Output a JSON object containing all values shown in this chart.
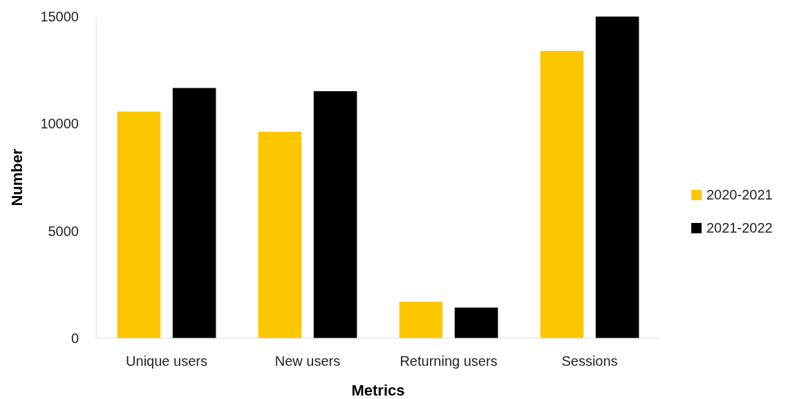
{
  "chart_data": {
    "type": "bar",
    "xlabel": "Metrics",
    "ylabel": "Number",
    "categories": [
      "Unique users",
      "New users",
      "Returning users",
      "Sessions"
    ],
    "series": [
      {
        "name": "2020-2021",
        "color": "#fdc700",
        "values": [
          10570,
          9630,
          1700,
          13400
        ]
      },
      {
        "name": "2021-2022",
        "color": "#000000",
        "values": [
          11670,
          11520,
          1430,
          15000
        ]
      }
    ],
    "ylim": [
      0,
      15000
    ],
    "yticks": [
      0,
      5000,
      10000,
      15000
    ],
    "grid": false,
    "legend": "right"
  }
}
